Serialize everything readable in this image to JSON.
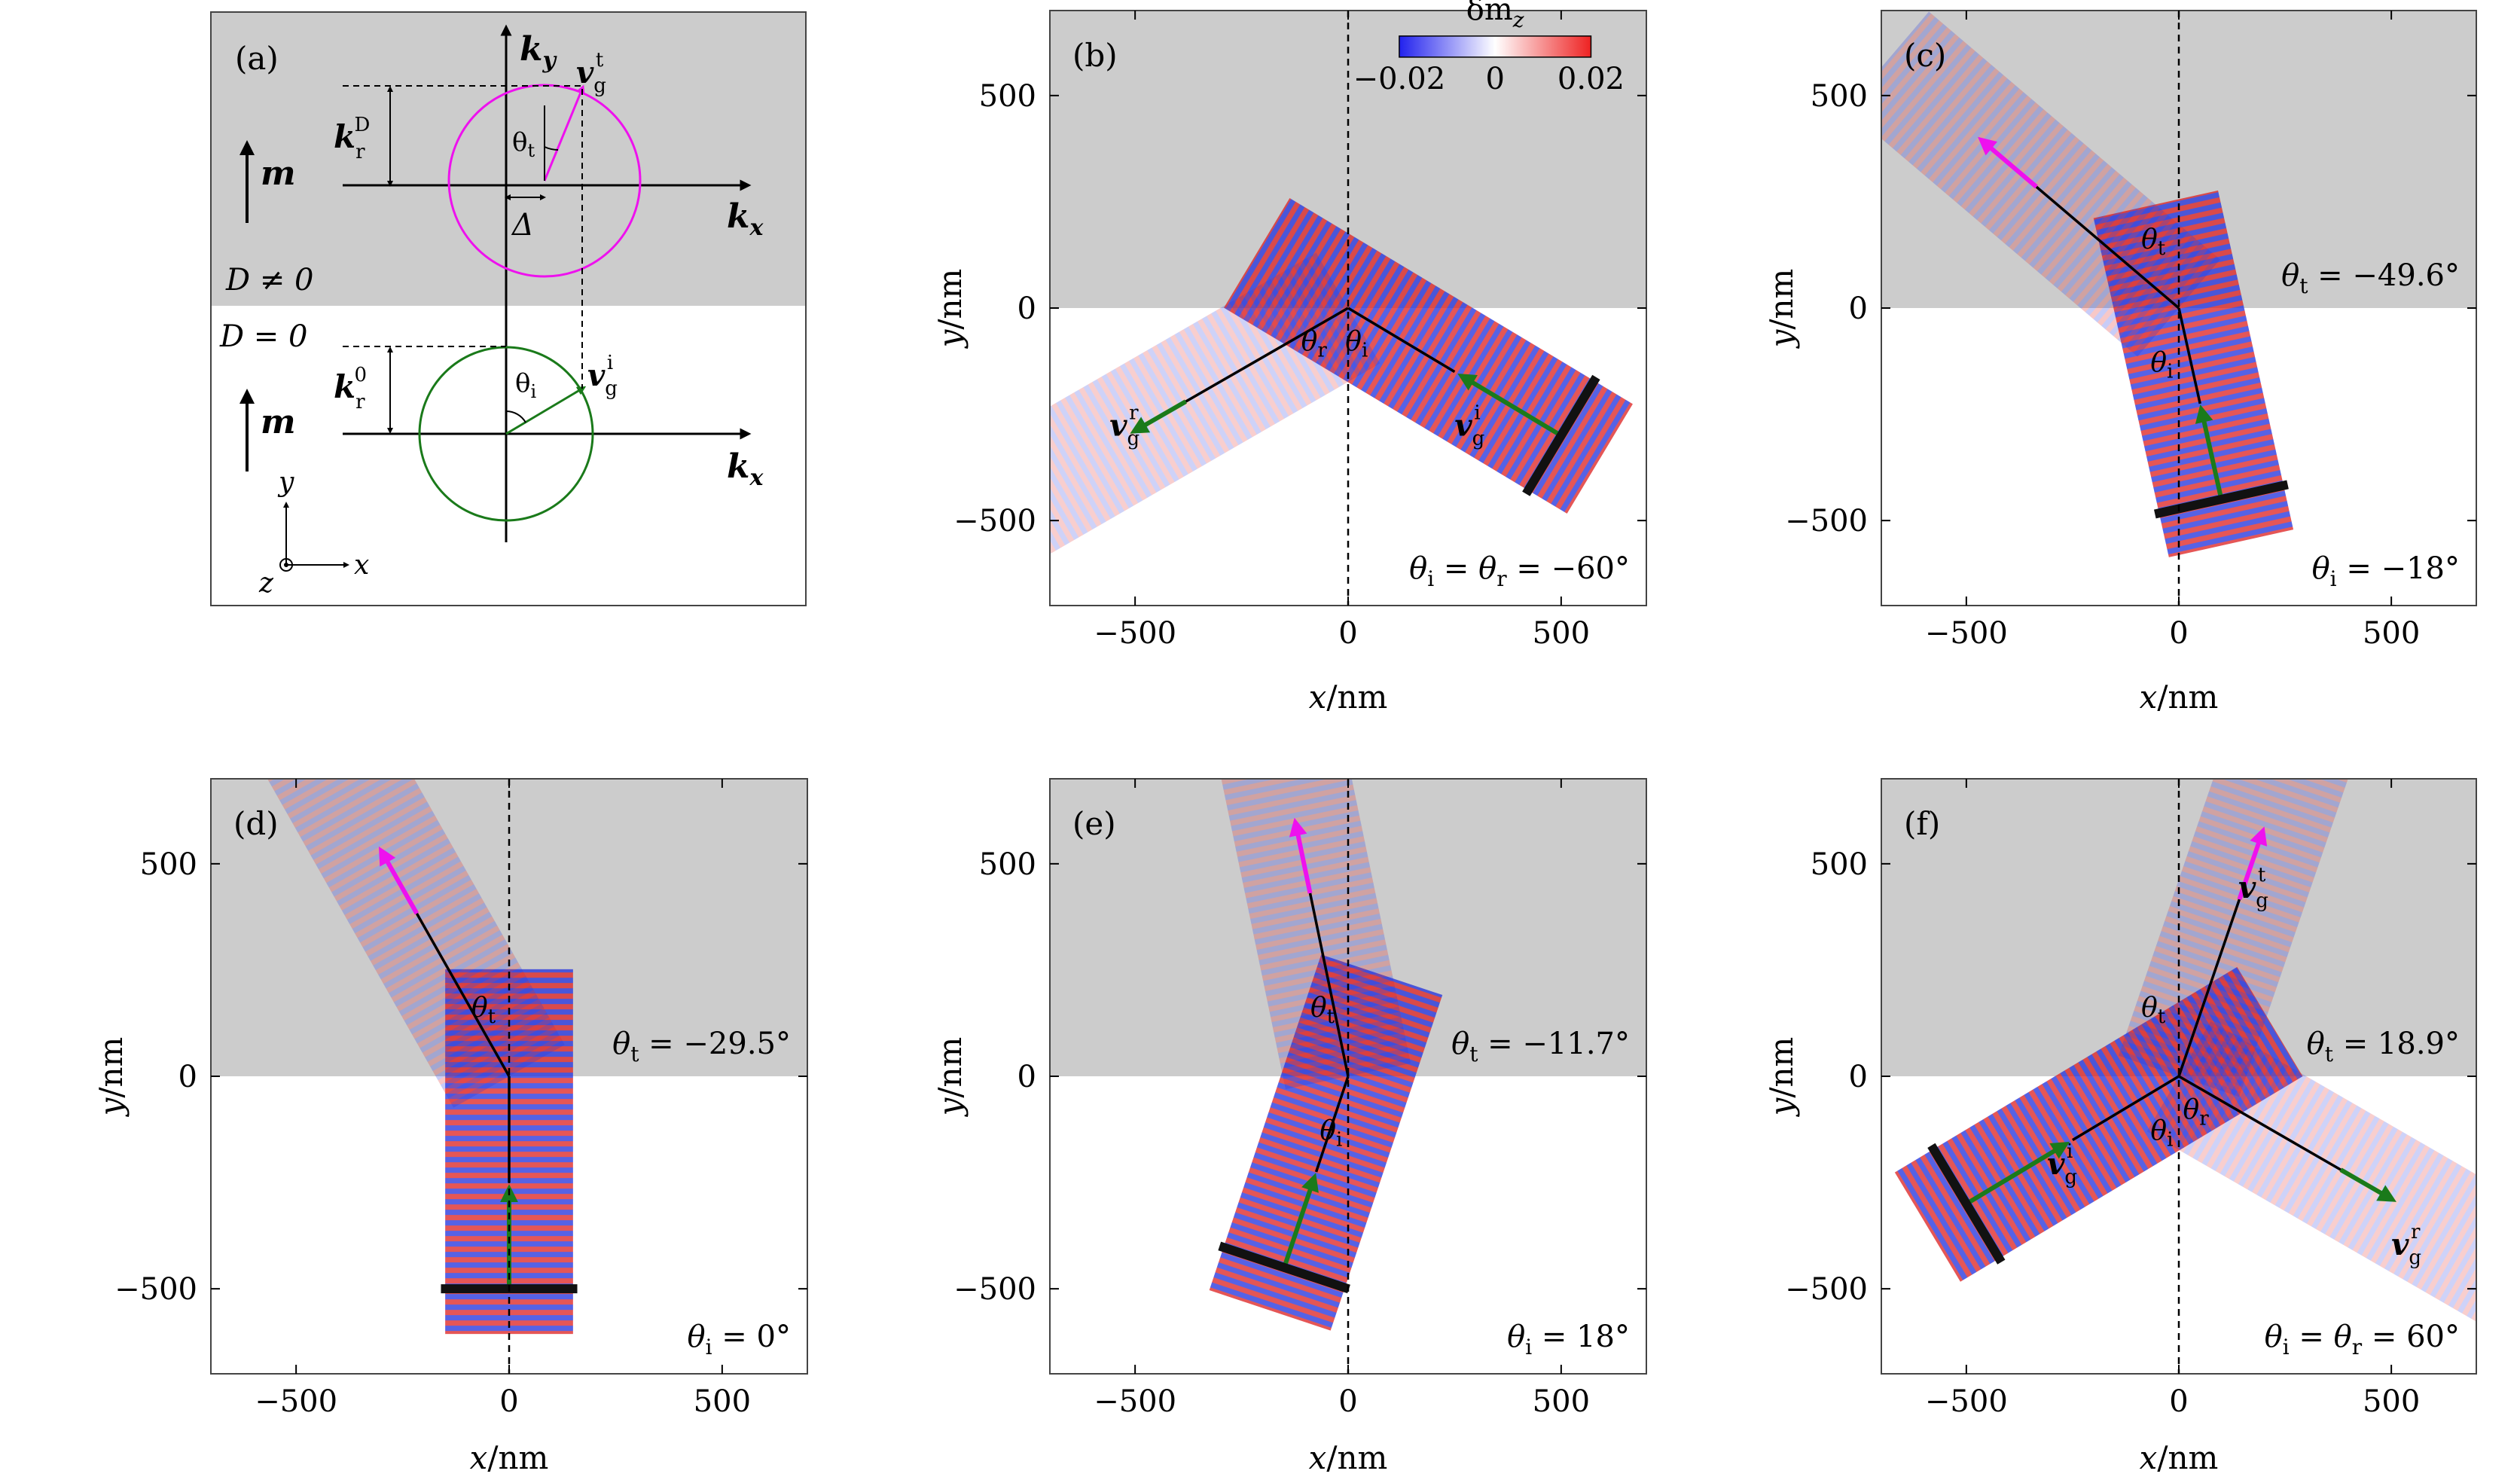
{
  "colors": {
    "gray_region": "#cccccc",
    "frame": "#444444",
    "incident_arrow": "#1a7a1a",
    "transmitted_arrow": "#ee11ee",
    "beam_red": "#dd2222",
    "beam_blue": "#2233dd",
    "bar": "#111111"
  },
  "panel_a": {
    "label": "(a)",
    "ky": "k",
    "ky_sub": "y",
    "kx_top": "k",
    "kx_top_sub": "x",
    "kx_bottom": "k",
    "kx_bottom_sub": "x",
    "m_top": "m",
    "m_bottom": "m",
    "d_nonzero": "D ≠ 0",
    "d_zero": "D = 0",
    "krD": "k",
    "krD_sub": "r",
    "krD_sup": "D",
    "kr0": "k",
    "kr0_sub": "r",
    "kr0_sup": "0",
    "theta_t": "θ",
    "theta_t_sub": "t",
    "theta_i": "θ",
    "theta_i_sub": "i",
    "delta": "Δ",
    "vgt": "v",
    "vgt_sub": "g",
    "vgt_sup": "t",
    "vgi": "v",
    "vgi_sub": "g",
    "vgi_sup": "i",
    "axis_y": "y",
    "axis_x": "x",
    "axis_z": "z"
  },
  "common": {
    "xlabel": "x/nm",
    "ylabel": "y/nm",
    "xticks": [
      "−500",
      "0",
      "500"
    ],
    "yticks": [
      "500",
      "0",
      "−500"
    ],
    "colorbar_title": "δm",
    "colorbar_title_sub": "z",
    "colorbar_ticks": [
      "−0.02",
      "0",
      "0.02"
    ]
  },
  "panels": [
    {
      "label": "(b)",
      "ann": "θ",
      "ann_sub": "i",
      "ann_tail": " = θ",
      "ann_sub2": "r",
      "ann_val": " = −60°",
      "theta_labels": [
        {
          "t": "θ",
          "s": "r"
        },
        {
          "t": "θ",
          "s": "i"
        }
      ],
      "vg_labels": [
        {
          "t": "v",
          "sub": "g",
          "sup": "r"
        },
        {
          "t": "v",
          "sub": "g",
          "sup": "i"
        }
      ]
    },
    {
      "label": "(c)",
      "ann_top": "θ",
      "ann_top_sub": "t",
      "ann_top_val": " = −49.6°",
      "ann": "θ",
      "ann_sub": "i",
      "ann_val": " = −18°",
      "theta_labels": [
        {
          "t": "θ",
          "s": "t"
        },
        {
          "t": "θ",
          "s": "i"
        }
      ]
    },
    {
      "label": "(d)",
      "ann_top": "θ",
      "ann_top_sub": "t",
      "ann_top_val": " = −29.5°",
      "ann": "θ",
      "ann_sub": "i",
      "ann_val": " = 0°",
      "theta_labels": [
        {
          "t": "θ",
          "s": "t"
        }
      ]
    },
    {
      "label": "(e)",
      "ann_top": "θ",
      "ann_top_sub": "t",
      "ann_top_val": " = −11.7°",
      "ann": "θ",
      "ann_sub": "i",
      "ann_val": " = 18°",
      "theta_labels": [
        {
          "t": "θ",
          "s": "t"
        },
        {
          "t": "θ",
          "s": "i"
        }
      ]
    },
    {
      "label": "(f)",
      "ann_top": "θ",
      "ann_top_sub": "t",
      "ann_top_val": " = 18.9°",
      "ann": "θ",
      "ann_sub": "i",
      "ann_tail": " = θ",
      "ann_sub2": "r",
      "ann_val": " = 60°",
      "theta_labels": [
        {
          "t": "θ",
          "s": "t"
        },
        {
          "t": "θ",
          "s": "i"
        },
        {
          "t": "θ",
          "s": "r"
        }
      ],
      "vg_labels": [
        {
          "t": "v",
          "sub": "g",
          "sup": "t"
        },
        {
          "t": "v",
          "sub": "g",
          "sup": "i"
        },
        {
          "t": "v",
          "sub": "g",
          "sup": "r"
        }
      ]
    }
  ]
}
